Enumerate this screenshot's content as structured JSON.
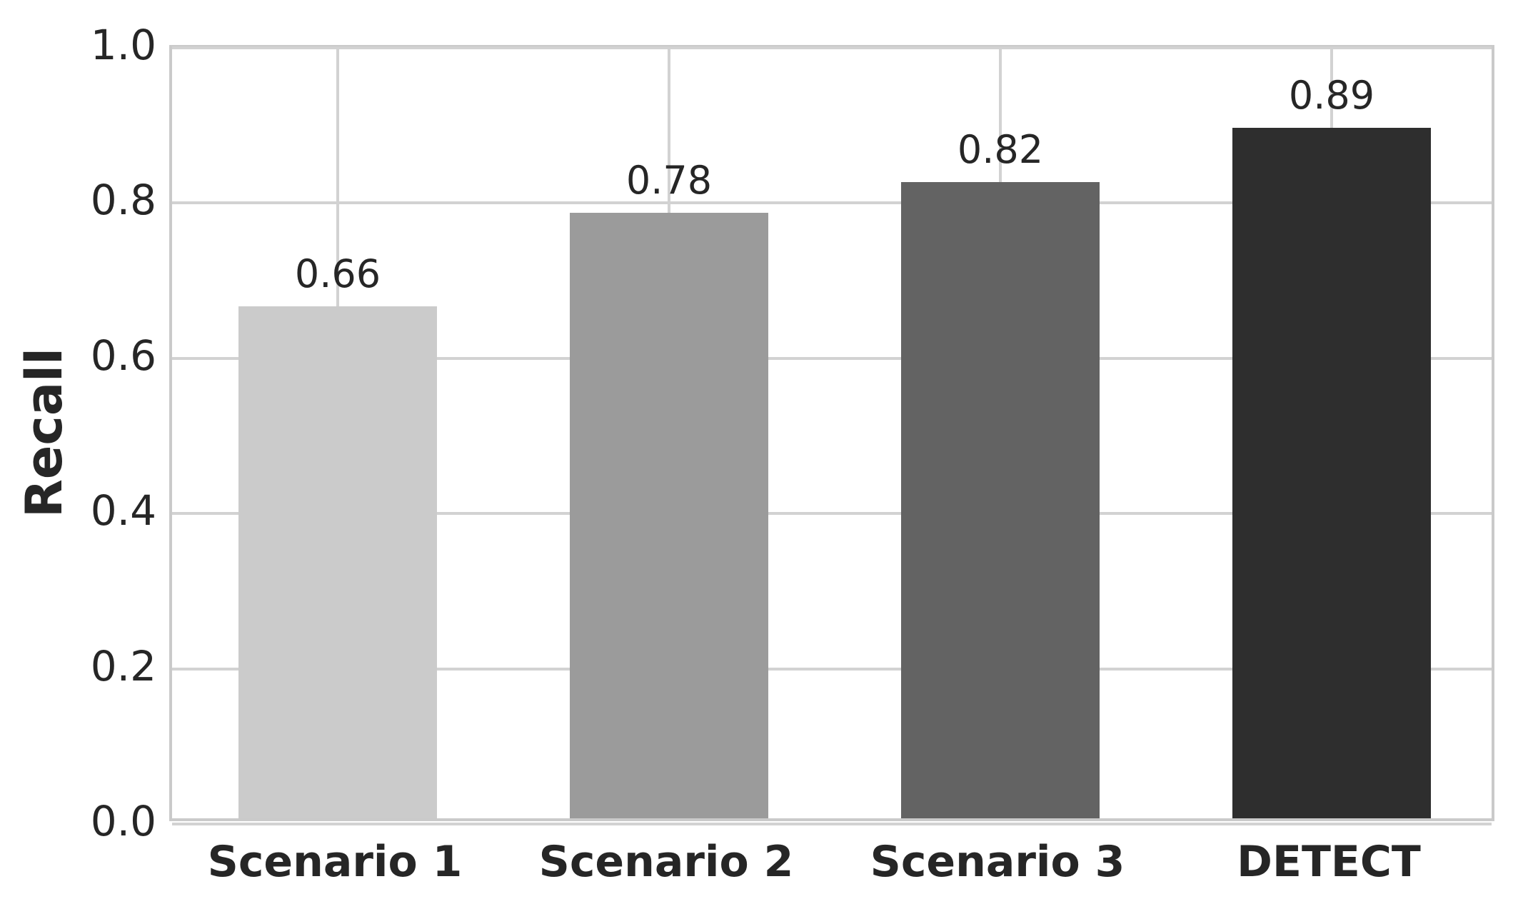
{
  "chart_data": {
    "type": "bar",
    "categories": [
      "Scenario 1",
      "Scenario 2",
      "Scenario 3",
      "DETECT"
    ],
    "values": [
      0.66,
      0.78,
      0.82,
      0.89
    ],
    "bar_value_labels": [
      "0.66",
      "0.78",
      "0.82",
      "0.89"
    ],
    "bar_colors": [
      "#cbcbcb",
      "#9b9b9b",
      "#636363",
      "#2e2e2e"
    ],
    "title": "",
    "xlabel": "",
    "ylabel": "Recall",
    "ylim": [
      0.0,
      1.0
    ],
    "yticks": [
      0.0,
      0.2,
      0.4,
      0.6,
      0.8,
      1.0
    ],
    "ytick_labels": [
      "0.0",
      "0.2",
      "0.4",
      "0.6",
      "0.8",
      "1.0"
    ],
    "grid": true,
    "grid_color": "#d2d2d2",
    "border_color": "#cacaca",
    "text_color": "#262626",
    "background_color": "#ffffff",
    "legend_position": "none",
    "bar_width_fraction": 0.6
  }
}
